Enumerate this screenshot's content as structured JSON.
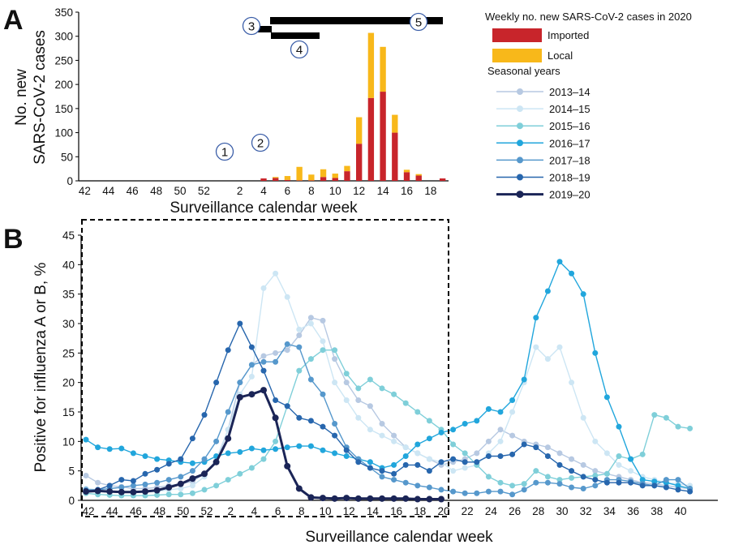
{
  "panel_a": {
    "letter": "A",
    "legend_title": "Weekly no. new SARS-CoV-2 cases in 2020",
    "seasons_title": "Seasonal years",
    "callouts": [
      "1",
      "2",
      "3",
      "4",
      "5"
    ]
  },
  "panel_b": {
    "letter": "B"
  },
  "colors": {
    "imported": "#c8252b",
    "local": "#f8b81a",
    "2013-14": "#b7c9e2",
    "2014-15": "#cde6f4",
    "2015-16": "#7fcfd9",
    "2016-17": "#21a6dc",
    "2017-18": "#5698cc",
    "2018-19": "#2766ad",
    "2019-20": "#1b2557"
  },
  "chart_data": [
    {
      "type": "bar",
      "stacked": true,
      "xlabel": "Surveillance calendar week",
      "ylabel": "No. new SARS-CoV-2 cases",
      "ylim": [
        0,
        350
      ],
      "yticks": [
        "0",
        "50",
        "100",
        "150",
        "200",
        "250",
        "300",
        "350"
      ],
      "xticks": [
        "42",
        "44",
        "46",
        "48",
        "50",
        "52",
        "2",
        "4",
        "6",
        "8",
        "10",
        "12",
        "14",
        "16",
        "18"
      ],
      "categories": [
        "42",
        "43",
        "44",
        "45",
        "46",
        "47",
        "48",
        "49",
        "50",
        "51",
        "52",
        "53",
        "1",
        "2",
        "3",
        "4",
        "5",
        "6",
        "7",
        "8",
        "9",
        "10",
        "11",
        "12",
        "13",
        "14",
        "15",
        "16",
        "17",
        "18",
        "19"
      ],
      "series": [
        {
          "name": "Imported",
          "values": [
            0,
            0,
            0,
            0,
            0,
            0,
            0,
            0,
            0,
            0,
            0,
            0,
            0,
            0,
            0,
            5,
            6,
            2,
            1,
            1,
            8,
            6,
            20,
            77,
            172,
            185,
            100,
            18,
            11,
            0,
            5
          ]
        },
        {
          "name": "Local",
          "values": [
            0,
            0,
            0,
            0,
            0,
            0,
            0,
            0,
            0,
            0,
            0,
            0,
            0,
            0,
            0,
            0,
            2,
            8,
            28,
            12,
            16,
            9,
            11,
            55,
            135,
            93,
            37,
            5,
            3,
            0,
            0
          ]
        }
      ],
      "legend": [
        "Imported",
        "Local"
      ],
      "legend_position": "right"
    },
    {
      "type": "line",
      "xlabel": "Surveillance calendar week",
      "ylabel": "Positive for influenza A or B, %",
      "ylim": [
        0,
        45
      ],
      "yticks": [
        "0",
        "5",
        "10",
        "15",
        "20",
        "25",
        "30",
        "35",
        "40",
        "45"
      ],
      "xticks": [
        "42",
        "44",
        "46",
        "48",
        "50",
        "52",
        "2",
        "4",
        "6",
        "8",
        "10",
        "12",
        "14",
        "16",
        "18",
        "20",
        "22",
        "24",
        "26",
        "28",
        "30",
        "32",
        "34",
        "36",
        "38",
        "40"
      ],
      "legend_title": "Seasonal years",
      "legend_position": "right",
      "series": [
        {
          "name": "2013–14",
          "values": [
            4.2,
            3.0,
            2.5,
            2.3,
            2.0,
            2.0,
            2.2,
            2.5,
            2.8,
            3.2,
            4.5,
            6.5,
            12,
            20,
            23,
            24.5,
            25,
            25.5,
            28,
            31,
            30.5,
            24,
            20,
            17,
            16,
            13,
            11,
            9,
            8,
            7,
            6,
            6.5,
            7,
            8,
            10,
            12,
            11,
            10,
            9.5,
            9,
            8,
            7,
            6,
            5,
            4.5,
            4,
            3.5,
            3,
            2.8,
            2.5,
            2.2,
            2.0
          ]
        },
        {
          "name": "2014–15",
          "values": [
            2.0,
            1.8,
            1.6,
            1.5,
            1.5,
            1.5,
            1.5,
            1.8,
            2.0,
            2.5,
            4,
            7,
            12,
            18,
            21,
            36,
            38.5,
            34.5,
            29,
            30,
            27,
            20,
            17,
            14,
            12,
            11,
            10,
            9,
            8,
            7,
            6.5,
            5,
            5.5,
            6,
            8,
            10,
            15,
            20,
            26,
            24,
            26,
            20,
            14,
            10,
            8,
            6,
            5,
            4,
            3.5,
            3,
            2.8,
            2.5
          ]
        },
        {
          "name": "2015–16",
          "values": [
            1.2,
            1.0,
            0.9,
            0.8,
            0.8,
            0.8,
            0.9,
            1.0,
            1.0,
            1.2,
            1.8,
            2.5,
            3.5,
            4.5,
            5.5,
            7,
            10,
            16,
            22,
            24,
            25.5,
            25.5,
            21.5,
            19,
            20.5,
            19,
            18,
            16.5,
            15,
            13.5,
            12,
            9.5,
            8,
            6,
            4,
            3,
            2.5,
            2.8,
            5,
            4,
            3.5,
            3.8,
            4,
            4.2,
            4.5,
            7.5,
            7,
            7.8,
            14.5,
            14,
            12.5,
            12.2
          ]
        },
        {
          "name": "2016–17",
          "values": [
            10.3,
            9,
            8.7,
            8.8,
            8.0,
            7.5,
            7.0,
            6.8,
            6.5,
            6.3,
            6.5,
            7.5,
            8,
            8.2,
            8.8,
            8.5,
            8.7,
            9,
            9.2,
            9.2,
            8.5,
            8,
            7.5,
            7,
            6.5,
            5.5,
            6,
            7.5,
            9.5,
            10.5,
            11.5,
            12,
            13,
            13.5,
            15.5,
            15,
            17,
            20.5,
            31,
            35.5,
            40.5,
            38.5,
            35,
            25,
            17.5,
            12.5,
            7,
            3.5,
            3.2,
            3.0,
            2.5,
            2.0
          ]
        },
        {
          "name": "2017–18",
          "values": [
            1.8,
            1.8,
            2.0,
            2.2,
            2.5,
            2.7,
            3.0,
            3.5,
            4.0,
            5,
            7,
            10,
            15,
            20,
            23,
            23.5,
            23.5,
            26.5,
            26,
            20.5,
            18,
            13,
            9,
            7,
            5.5,
            4,
            3.5,
            3,
            2.5,
            2.2,
            1.8,
            1.5,
            1.2,
            1.2,
            1.5,
            1.5,
            1.0,
            1.8,
            3.0,
            3.0,
            2.8,
            2.2,
            2.0,
            2.5,
            3.5,
            3.5,
            3.2,
            2.8,
            2.5,
            3.5,
            3.5,
            2.0
          ]
        },
        {
          "name": "2018–19",
          "values": [
            1.6,
            1.8,
            2.5,
            3.5,
            3.3,
            4.5,
            5.2,
            6.2,
            7,
            10.5,
            14.5,
            20,
            25.5,
            30,
            26,
            22,
            17,
            16,
            14,
            13.5,
            12.5,
            11,
            8.5,
            6.5,
            5.5,
            5,
            4.5,
            6,
            6,
            5,
            6.5,
            7,
            6.5,
            6.5,
            7.5,
            7.5,
            7.8,
            9.5,
            9,
            7.5,
            6,
            5,
            4,
            3.5,
            3,
            3,
            3,
            2.5,
            2.5,
            2.2,
            1.8,
            1.5
          ]
        },
        {
          "name": "2019–20",
          "values": [
            1.5,
            1.6,
            1.5,
            1.4,
            1.4,
            1.5,
            1.7,
            2.2,
            2.8,
            3.7,
            4.5,
            6.5,
            10.5,
            17.5,
            18,
            18.7,
            14,
            5.8,
            2.0,
            0.5,
            0.4,
            0.3,
            0.4,
            0.3,
            0.3,
            0.3,
            0.3,
            0.3,
            0.2,
            0.2,
            0.2
          ]
        }
      ]
    }
  ]
}
